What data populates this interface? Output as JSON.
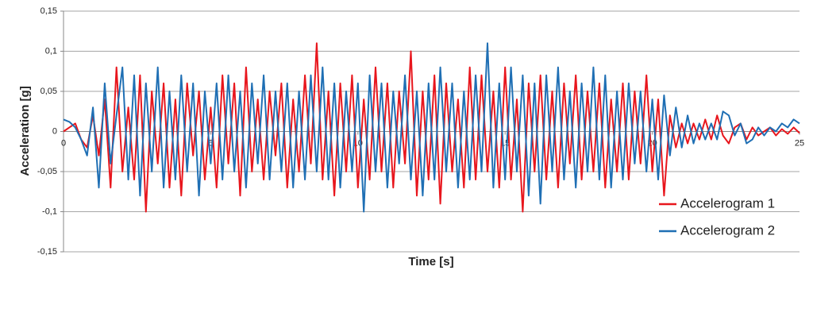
{
  "chart_data": {
    "type": "line",
    "x_label": "Time [s]",
    "y_label": "Acceleration [g]",
    "x": [
      0,
      0.2,
      0.4,
      0.6,
      0.8,
      1,
      1.2,
      1.4,
      1.6,
      1.8,
      2,
      2.2,
      2.4,
      2.6,
      2.8,
      3,
      3.2,
      3.4,
      3.6,
      3.8,
      4,
      4.2,
      4.4,
      4.6,
      4.8,
      5,
      5.2,
      5.4,
      5.6,
      5.8,
      6,
      6.2,
      6.4,
      6.6,
      6.8,
      7,
      7.2,
      7.4,
      7.6,
      7.8,
      8,
      8.2,
      8.4,
      8.6,
      8.8,
      9,
      9.2,
      9.4,
      9.6,
      9.8,
      10,
      10.2,
      10.4,
      10.6,
      10.8,
      11,
      11.2,
      11.4,
      11.6,
      11.8,
      12,
      12.2,
      12.4,
      12.6,
      12.8,
      13,
      13.2,
      13.4,
      13.6,
      13.8,
      14,
      14.2,
      14.4,
      14.6,
      14.8,
      15,
      15.2,
      15.4,
      15.6,
      15.8,
      16,
      16.2,
      16.4,
      16.6,
      16.8,
      17,
      17.2,
      17.4,
      17.6,
      17.8,
      18,
      18.2,
      18.4,
      18.6,
      18.8,
      19,
      19.2,
      19.4,
      19.6,
      19.8,
      20,
      20.2,
      20.4,
      20.6,
      20.8,
      21,
      21.2,
      21.4,
      21.6,
      21.8,
      22,
      22.2,
      22.4,
      22.6,
      22.8,
      23,
      23.2,
      23.4,
      23.6,
      23.8,
      24,
      24.2,
      24.4,
      24.6,
      24.8,
      25
    ],
    "series": [
      {
        "name": "Accelerogram 1",
        "color": "#e8161d",
        "values": [
          0,
          0.005,
          0.01,
          -0.01,
          -0.02,
          0.02,
          -0.03,
          0.04,
          -0.07,
          0.08,
          -0.05,
          0.03,
          -0.06,
          0.07,
          -0.1,
          0.05,
          -0.04,
          0.06,
          -0.07,
          0.04,
          -0.08,
          0.06,
          -0.03,
          0.05,
          -0.06,
          0.03,
          -0.07,
          0.07,
          -0.04,
          0.06,
          -0.08,
          0.08,
          -0.05,
          0.04,
          -0.06,
          0.05,
          -0.03,
          0.06,
          -0.07,
          0.04,
          -0.05,
          0.07,
          -0.04,
          0.11,
          -0.06,
          0.05,
          -0.08,
          0.06,
          -0.05,
          0.07,
          -0.07,
          0.04,
          -0.06,
          0.08,
          -0.05,
          0.06,
          -0.07,
          0.05,
          -0.04,
          0.1,
          -0.08,
          0.05,
          -0.06,
          0.07,
          -0.09,
          0.06,
          -0.05,
          0.04,
          -0.07,
          0.08,
          -0.06,
          0.07,
          -0.05,
          0.05,
          -0.07,
          0.08,
          -0.06,
          0.04,
          -0.1,
          0.06,
          -0.05,
          0.07,
          -0.06,
          0.05,
          -0.07,
          0.06,
          -0.04,
          0.07,
          -0.06,
          0.05,
          -0.05,
          0.06,
          -0.07,
          0.04,
          -0.05,
          0.06,
          -0.06,
          0.05,
          -0.04,
          0.07,
          -0.05,
          0.04,
          -0.08,
          0.02,
          -0.02,
          0.01,
          -0.015,
          0.01,
          -0.01,
          0.015,
          -0.01,
          0.02,
          -0.005,
          -0.015,
          0.005,
          0.01,
          -0.01,
          0.005,
          -0.005,
          0,
          0.005,
          -0.005,
          0.003,
          -0.003,
          0.005,
          -0.002
        ]
      },
      {
        "name": "Accelerogram 2",
        "color": "#1f6fb4",
        "values": [
          0.015,
          0.012,
          0.005,
          -0.01,
          -0.03,
          0.03,
          -0.07,
          0.06,
          -0.04,
          0.02,
          0.08,
          -0.06,
          0.07,
          -0.08,
          0.06,
          -0.05,
          0.08,
          -0.07,
          0.05,
          -0.06,
          0.07,
          -0.05,
          0.06,
          -0.08,
          0.05,
          -0.04,
          0.06,
          -0.06,
          0.07,
          -0.05,
          0.05,
          -0.07,
          0.06,
          -0.04,
          0.07,
          -0.06,
          0.05,
          -0.05,
          0.06,
          -0.07,
          0.05,
          -0.06,
          0.07,
          -0.05,
          0.08,
          -0.06,
          0.06,
          -0.07,
          0.05,
          -0.05,
          0.06,
          -0.1,
          0.07,
          -0.05,
          0.06,
          -0.07,
          0.05,
          -0.04,
          0.07,
          -0.06,
          0.05,
          -0.08,
          0.06,
          -0.06,
          0.08,
          -0.05,
          0.06,
          -0.07,
          0.05,
          -0.06,
          0.07,
          -0.05,
          0.11,
          -0.07,
          0.06,
          -0.06,
          0.08,
          -0.05,
          0.07,
          -0.08,
          0.06,
          -0.09,
          0.07,
          -0.05,
          0.08,
          -0.06,
          0.05,
          -0.07,
          0.06,
          -0.05,
          0.08,
          -0.06,
          0.07,
          -0.07,
          0.05,
          -0.06,
          0.06,
          -0.04,
          0.05,
          -0.05,
          0.04,
          -0.06,
          0.045,
          -0.03,
          0.03,
          -0.02,
          0.02,
          -0.015,
          0.01,
          -0.01,
          0.01,
          -0.01,
          0.025,
          0.02,
          -0.005,
          0.01,
          -0.015,
          -0.01,
          0.005,
          -0.005,
          0.005,
          0,
          0.01,
          0.005,
          0.015,
          0.01
        ]
      }
    ],
    "xlim": [
      0,
      25
    ],
    "xticks": [
      0,
      5,
      10,
      15,
      20,
      25
    ],
    "ylim": [
      -0.15,
      0.15
    ],
    "yticks": [
      {
        "value": -0.15,
        "label": "-0,15"
      },
      {
        "value": -0.1,
        "label": "-0,1"
      },
      {
        "value": -0.05,
        "label": "-0,05"
      },
      0,
      {
        "value": 0.05,
        "label": "0,05"
      },
      {
        "value": 0.1,
        "label": "0,1"
      },
      {
        "value": 0.15,
        "label": "0,15"
      }
    ],
    "grid": true,
    "legend": "lower right"
  }
}
